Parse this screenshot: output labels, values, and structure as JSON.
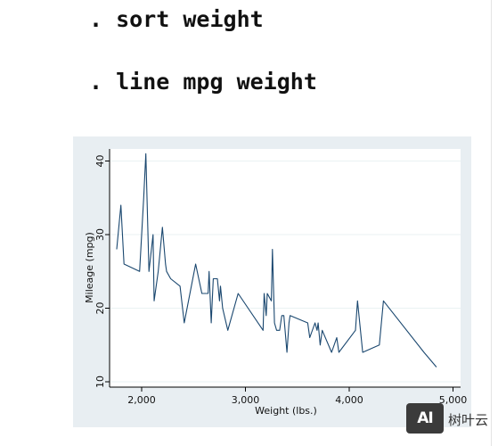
{
  "commands": [
    ". sort weight",
    ". line mpg weight"
  ],
  "logo": {
    "mark": "AI",
    "text": "树叶云"
  },
  "colors": {
    "line": "#1a476f",
    "frame": "#e8eef2",
    "grid": "#eaf2f3",
    "axis": "#000000"
  },
  "chart_data": {
    "type": "line",
    "xlabel": "Weight (lbs.)",
    "ylabel": "Mileage (mpg)",
    "xlim": [
      1760,
      4840
    ],
    "ylim": [
      10,
      41
    ],
    "xticks": [
      2000,
      3000,
      4000,
      5000
    ],
    "xticklabels": [
      "2,000",
      "3,000",
      "4,000",
      "5,000"
    ],
    "yticks": [
      10,
      20,
      30,
      40
    ],
    "yticklabels": [
      "10",
      "20",
      "30",
      "40"
    ],
    "grid": true,
    "x": [
      1760,
      1800,
      1830,
      1980,
      2020,
      2040,
      2070,
      2110,
      2120,
      2160,
      2200,
      2230,
      2240,
      2280,
      2370,
      2410,
      2520,
      2580,
      2640,
      2650,
      2670,
      2690,
      2730,
      2750,
      2760,
      2780,
      2830,
      2930,
      3170,
      3180,
      3200,
      3210,
      3250,
      3260,
      3280,
      3300,
      3330,
      3350,
      3370,
      3400,
      3420,
      3430,
      3600,
      3620,
      3670,
      3690,
      3700,
      3720,
      3740,
      3830,
      3880,
      3900,
      4060,
      4080,
      4130,
      4290,
      4330,
      4720,
      4840
    ],
    "y": [
      28,
      34,
      26,
      25,
      35,
      41,
      25,
      30,
      21,
      25,
      31,
      26,
      25,
      24,
      23,
      18,
      26,
      22,
      22,
      25,
      18,
      24,
      24,
      21,
      23,
      20,
      17,
      22,
      17,
      22,
      19,
      22,
      21,
      28,
      18,
      17,
      17,
      19,
      19,
      14,
      18,
      19,
      18,
      16,
      18,
      17,
      18,
      15,
      17,
      14,
      16,
      14,
      17,
      21,
      14,
      15,
      21,
      14,
      12
    ]
  }
}
